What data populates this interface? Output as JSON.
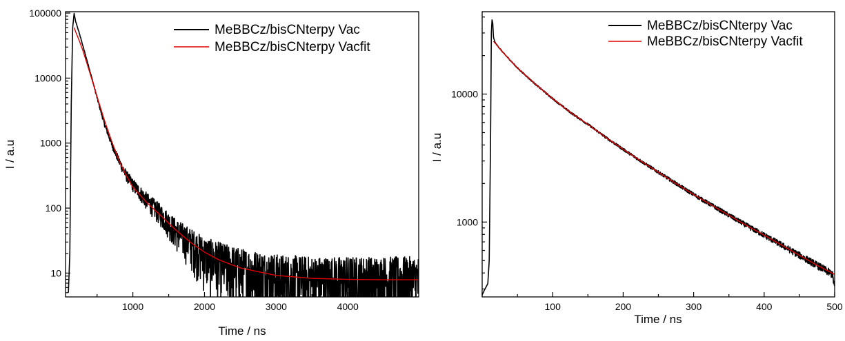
{
  "chart_data": [
    {
      "type": "line",
      "panel": "left",
      "xlabel": "Time / ns",
      "ylabel": "I / a.u",
      "x_scale": "linear",
      "y_scale": "log",
      "xlim": [
        60,
        4990
      ],
      "ylim": [
        4.3,
        105000
      ],
      "x_ticks": [
        1000,
        2000,
        3000,
        4000
      ],
      "x_tick_labels": [
        "1000",
        "2000",
        "3000",
        "4000"
      ],
      "y_ticks": [
        10,
        100,
        1000,
        10000,
        100000
      ],
      "y_tick_labels": [
        "10",
        "100",
        "1000",
        "10000",
        "100000"
      ],
      "legend_position": "top-right",
      "grid": false,
      "series": [
        {
          "name": "MeBBCz/bisCNterpy Vac",
          "color": "#000000",
          "x": [
            100,
            120,
            140,
            160,
            180,
            200,
            250,
            300,
            400,
            500,
            600,
            700,
            800,
            900,
            1000,
            1200,
            1400,
            1600,
            1800,
            2000,
            2200,
            2500,
            3000,
            3500,
            4000,
            4500,
            4990
          ],
          "y": [
            5,
            20,
            4000,
            60000,
            99000,
            75000,
            50000,
            32000,
            13000,
            5000,
            2000,
            1000,
            550,
            330,
            230,
            130,
            80,
            45,
            30,
            20,
            16,
            12,
            9,
            8,
            8,
            8,
            8
          ]
        },
        {
          "name": "MeBBCz/bisCNterpy Vacfit",
          "color": "#e00000",
          "x": [
            180,
            200,
            250,
            300,
            400,
            500,
            600,
            700,
            800,
            900,
            1000,
            1200,
            1400,
            1600,
            1800,
            2000,
            2200,
            2500,
            3000,
            3500,
            4000,
            4500,
            4990
          ],
          "y": [
            60000,
            52000,
            38000,
            27000,
            12000,
            5200,
            2300,
            1100,
            560,
            330,
            210,
            120,
            75,
            46,
            30,
            21,
            16,
            12,
            9.2,
            8.3,
            8,
            7.9,
            7.9
          ]
        }
      ]
    },
    {
      "type": "line",
      "panel": "right",
      "xlabel": "Time / ns",
      "ylabel": "I / a.u",
      "x_scale": "linear",
      "y_scale": "log",
      "xlim": [
        0,
        500
      ],
      "ylim": [
        260,
        44000
      ],
      "x_ticks": [
        100,
        200,
        300,
        400,
        500
      ],
      "x_tick_labels": [
        "100",
        "200",
        "300",
        "400",
        "500"
      ],
      "y_ticks": [
        1000,
        10000
      ],
      "y_tick_labels": [
        "1000",
        "10000"
      ],
      "legend_position": "top-right",
      "grid": false,
      "series": [
        {
          "name": "MeBBCz/bisCNterpy Vac",
          "color": "#000000",
          "x": [
            0,
            4,
            8,
            10,
            12,
            13,
            14,
            15,
            16,
            18,
            20,
            30,
            50,
            75,
            100,
            125,
            150,
            175,
            200,
            225,
            250,
            275,
            300,
            325,
            350,
            375,
            400,
            425,
            450,
            475,
            497,
            500
          ],
          "y": [
            270,
            300,
            330,
            500,
            5000,
            30000,
            38000,
            36000,
            28000,
            25500,
            24500,
            21000,
            16000,
            12000,
            9200,
            7200,
            5800,
            4600,
            3700,
            3000,
            2450,
            2000,
            1640,
            1360,
            1130,
            940,
            790,
            660,
            550,
            460,
            390,
            300
          ]
        },
        {
          "name": "MeBBCz/bisCNterpy Vacfit",
          "color": "#e00000",
          "x": [
            16,
            20,
            30,
            50,
            75,
            100,
            125,
            150,
            175,
            200,
            225,
            250,
            275,
            300,
            325,
            350,
            375,
            400,
            425,
            450,
            475,
            500
          ],
          "y": [
            25800,
            24500,
            21000,
            16000,
            12000,
            9200,
            7200,
            5800,
            4600,
            3700,
            3000,
            2450,
            2000,
            1640,
            1360,
            1130,
            940,
            790,
            660,
            550,
            460,
            390
          ]
        }
      ]
    }
  ]
}
